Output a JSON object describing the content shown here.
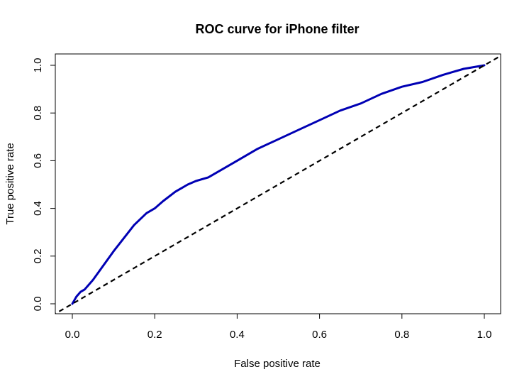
{
  "chart_data": {
    "type": "line",
    "title": "ROC curve for iPhone filter",
    "xlabel": "False positive rate",
    "ylabel": "True positive rate",
    "xlim": [
      0,
      1
    ],
    "ylim": [
      0,
      1
    ],
    "xticks": [
      "0.0",
      "0.2",
      "0.4",
      "0.6",
      "0.8",
      "1.0"
    ],
    "yticks": [
      "0.0",
      "0.2",
      "0.4",
      "0.6",
      "0.8",
      "1.0"
    ],
    "grid": false,
    "legend": "none",
    "colors": {
      "curve": "#0000b4",
      "reference": "#000000"
    },
    "series": [
      {
        "style": "solid",
        "x": [
          0.0,
          0.01,
          0.02,
          0.03,
          0.05,
          0.1,
          0.15,
          0.18,
          0.2,
          0.22,
          0.25,
          0.28,
          0.3,
          0.33,
          0.35,
          0.4,
          0.45,
          0.5,
          0.55,
          0.6,
          0.65,
          0.7,
          0.75,
          0.8,
          0.85,
          0.9,
          0.95,
          1.0
        ],
        "y": [
          0.0,
          0.03,
          0.05,
          0.06,
          0.1,
          0.22,
          0.33,
          0.38,
          0.4,
          0.43,
          0.47,
          0.5,
          0.515,
          0.53,
          0.55,
          0.6,
          0.65,
          0.69,
          0.73,
          0.77,
          0.81,
          0.84,
          0.88,
          0.91,
          0.93,
          0.96,
          0.985,
          1.0
        ]
      },
      {
        "style": "dashed",
        "x": [
          -0.05,
          1.05
        ],
        "y": [
          -0.05,
          1.05
        ]
      }
    ]
  }
}
